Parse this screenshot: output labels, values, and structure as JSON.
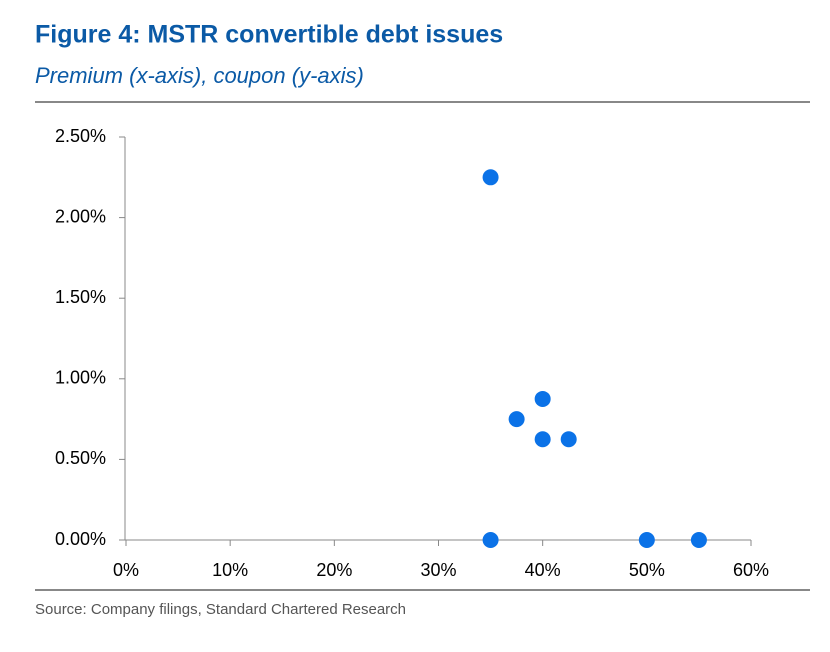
{
  "chart_data": {
    "type": "scatter",
    "title": "Figure 4: MSTR convertible debt issues",
    "subtitle": "Premium (x-axis), coupon (y-axis)",
    "source": "Source: Company filings, Standard Chartered Research",
    "x": [
      35,
      40,
      37.5,
      40,
      42.5,
      35,
      50,
      55
    ],
    "y": [
      2.25,
      0.875,
      0.75,
      0.625,
      0.625,
      0,
      0,
      0
    ],
    "color": "#0b72e7",
    "xlim": [
      0,
      60
    ],
    "xticks": [
      {
        "value": 0,
        "label": "0%"
      },
      {
        "value": 10,
        "label": "10%"
      },
      {
        "value": 20,
        "label": "20%"
      },
      {
        "value": 30,
        "label": "30%"
      },
      {
        "value": 40,
        "label": "40%"
      },
      {
        "value": 50,
        "label": "50%"
      },
      {
        "value": 60,
        "label": "60%"
      }
    ],
    "ylim": [
      0,
      2.5
    ],
    "yticks": [
      {
        "value": 0,
        "label": "0.00%"
      },
      {
        "value": 0.5,
        "label": "0.50%"
      },
      {
        "value": 1,
        "label": "1.00%"
      },
      {
        "value": 1.5,
        "label": "1.50%"
      },
      {
        "value": 2,
        "label": "2.00%"
      },
      {
        "value": 2.5,
        "label": "2.50%"
      }
    ],
    "grid": false
  }
}
